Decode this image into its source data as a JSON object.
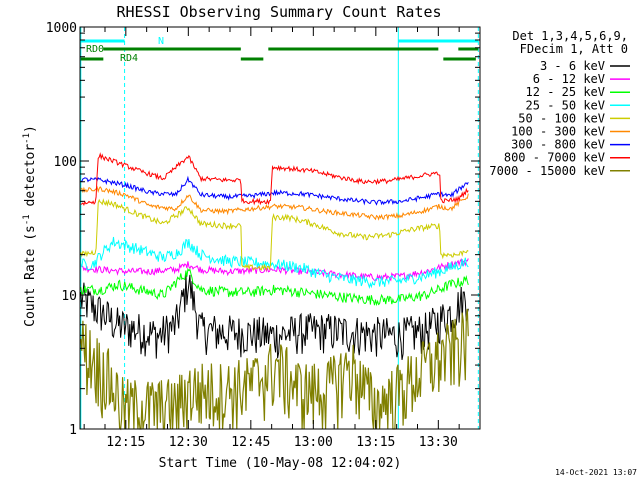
{
  "chart_data": {
    "type": "line",
    "title": "RHESSI Observing Summary Count Rates",
    "xlabel": "Start Time (10-May-08 12:04:02)",
    "ylabel_parts": [
      "Count Rate (s",
      "-1",
      " detector",
      "-1",
      ")"
    ],
    "yscale": "log",
    "ylim": [
      1,
      1000
    ],
    "xlim_minutes": [
      12.0667,
      13.6667
    ],
    "x_tick_labels": [
      "12:15",
      "12:30",
      "12:45",
      "13:00",
      "13:15",
      "13:30"
    ],
    "x_tick_values": [
      12.25,
      12.5,
      12.75,
      13.0,
      13.25,
      13.5
    ],
    "y_tick_labels": [
      "1",
      "10",
      "100",
      "1000"
    ],
    "y_tick_values": [
      1,
      10,
      100,
      1000
    ],
    "legend_header": [
      "Det 1,3,4,5,6,9,",
      "FDecim 1, Att 0"
    ],
    "legend_placement": "right",
    "footer": "14-Oct-2021 13:07",
    "series": [
      {
        "name": "3 - 6 keV",
        "color": "#000000",
        "points": [
          [
            12.07,
            9.5
          ],
          [
            12.15,
            7.5
          ],
          [
            12.22,
            6
          ],
          [
            12.3,
            5.5
          ],
          [
            12.38,
            5
          ],
          [
            12.45,
            6
          ],
          [
            12.5,
            13
          ],
          [
            12.55,
            5.5
          ],
          [
            12.65,
            5.3
          ],
          [
            12.75,
            5.2
          ],
          [
            12.85,
            5
          ],
          [
            12.95,
            5.4
          ],
          [
            13.05,
            5.5
          ],
          [
            13.15,
            5.3
          ],
          [
            13.25,
            5.1
          ],
          [
            13.35,
            5
          ],
          [
            13.45,
            5.5
          ],
          [
            13.55,
            7.5
          ],
          [
            13.62,
            10
          ]
        ]
      },
      {
        "name": "6 - 12 keV",
        "color": "#ff00ff",
        "points": [
          [
            12.07,
            16
          ],
          [
            12.15,
            15.5
          ],
          [
            12.25,
            15
          ],
          [
            12.35,
            15
          ],
          [
            12.45,
            15.5
          ],
          [
            12.5,
            17
          ],
          [
            12.55,
            15.5
          ],
          [
            12.65,
            15
          ],
          [
            12.75,
            15.2
          ],
          [
            12.85,
            15.5
          ],
          [
            12.95,
            15
          ],
          [
            13.05,
            14.5
          ],
          [
            13.15,
            14
          ],
          [
            13.25,
            13.5
          ],
          [
            13.35,
            13.8
          ],
          [
            13.45,
            15
          ],
          [
            13.55,
            17
          ],
          [
            13.62,
            18
          ]
        ]
      },
      {
        "name": "12 - 25 keV",
        "color": "#00ff00",
        "points": [
          [
            12.07,
            11
          ],
          [
            12.15,
            11
          ],
          [
            12.22,
            12
          ],
          [
            12.3,
            11
          ],
          [
            12.4,
            10
          ],
          [
            12.46,
            13
          ],
          [
            12.5,
            15
          ],
          [
            12.55,
            11
          ],
          [
            12.65,
            10.5
          ],
          [
            12.75,
            10.5
          ],
          [
            12.85,
            11
          ],
          [
            12.95,
            10.5
          ],
          [
            13.05,
            10
          ],
          [
            13.15,
            9.5
          ],
          [
            13.25,
            9.2
          ],
          [
            13.35,
            9.3
          ],
          [
            13.45,
            10
          ],
          [
            13.55,
            12
          ],
          [
            13.62,
            13
          ]
        ]
      },
      {
        "name": "25 - 50 keV",
        "color": "#00ffff",
        "points": [
          [
            12.07,
            17
          ],
          [
            12.12,
            17
          ],
          [
            12.16,
            21
          ],
          [
            12.2,
            25
          ],
          [
            12.3,
            22
          ],
          [
            12.4,
            19
          ],
          [
            12.46,
            21
          ],
          [
            12.5,
            25
          ],
          [
            12.55,
            20
          ],
          [
            12.65,
            18
          ],
          [
            12.75,
            17.5
          ],
          [
            12.85,
            17
          ],
          [
            12.95,
            16
          ],
          [
            13.05,
            14
          ],
          [
            13.15,
            13
          ],
          [
            13.25,
            12.5
          ],
          [
            13.35,
            12.8
          ],
          [
            13.45,
            14
          ],
          [
            13.55,
            16
          ],
          [
            13.62,
            18
          ]
        ]
      },
      {
        "name": "50 - 100 keV",
        "color": "#cccc00",
        "points": [
          [
            12.07,
            20
          ],
          [
            12.13,
            21
          ],
          [
            12.14,
            50
          ],
          [
            12.2,
            48
          ],
          [
            12.3,
            40
          ],
          [
            12.4,
            34
          ],
          [
            12.5,
            45
          ],
          [
            12.55,
            34
          ],
          [
            12.65,
            33
          ],
          [
            12.71,
            33
          ],
          [
            12.715,
            16
          ],
          [
            12.78,
            16
          ],
          [
            12.83,
            16
          ],
          [
            12.835,
            38
          ],
          [
            12.9,
            38
          ],
          [
            13.0,
            34
          ],
          [
            13.1,
            29
          ],
          [
            13.2,
            27
          ],
          [
            13.3,
            28
          ],
          [
            13.4,
            31
          ],
          [
            13.505,
            33
          ],
          [
            13.51,
            20
          ],
          [
            13.58,
            20
          ],
          [
            13.62,
            22
          ]
        ]
      },
      {
        "name": "100 - 300 keV",
        "color": "#ff8800",
        "points": [
          [
            12.07,
            60
          ],
          [
            12.15,
            62
          ],
          [
            12.25,
            56
          ],
          [
            12.35,
            46
          ],
          [
            12.45,
            44
          ],
          [
            12.5,
            56
          ],
          [
            12.55,
            43
          ],
          [
            12.65,
            42
          ],
          [
            12.75,
            44
          ],
          [
            12.85,
            46
          ],
          [
            12.95,
            45
          ],
          [
            13.05,
            42
          ],
          [
            13.15,
            40
          ],
          [
            13.25,
            38
          ],
          [
            13.35,
            39
          ],
          [
            13.45,
            43
          ],
          [
            13.5,
            46
          ],
          [
            13.55,
            44
          ],
          [
            13.62,
            55
          ]
        ]
      },
      {
        "name": "300 - 800 keV",
        "color": "#0000ff",
        "points": [
          [
            12.07,
            73
          ],
          [
            12.15,
            72
          ],
          [
            12.25,
            66
          ],
          [
            12.35,
            58
          ],
          [
            12.45,
            56
          ],
          [
            12.5,
            73
          ],
          [
            12.55,
            56
          ],
          [
            12.65,
            54
          ],
          [
            12.75,
            55
          ],
          [
            12.85,
            58
          ],
          [
            12.95,
            57
          ],
          [
            13.05,
            54
          ],
          [
            13.15,
            51
          ],
          [
            13.25,
            49
          ],
          [
            13.35,
            50
          ],
          [
            13.45,
            54
          ],
          [
            13.5,
            57
          ],
          [
            13.55,
            55
          ],
          [
            13.62,
            70
          ]
        ]
      },
      {
        "name": "800 - 7000 keV",
        "color": "#ff0000",
        "points": [
          [
            12.07,
            48
          ],
          [
            12.13,
            50
          ],
          [
            12.14,
            110
          ],
          [
            12.2,
            100
          ],
          [
            12.3,
            85
          ],
          [
            12.4,
            74
          ],
          [
            12.5,
            108
          ],
          [
            12.55,
            74
          ],
          [
            12.65,
            72
          ],
          [
            12.71,
            72
          ],
          [
            12.715,
            50
          ],
          [
            12.78,
            50
          ],
          [
            12.83,
            50
          ],
          [
            12.835,
            90
          ],
          [
            12.9,
            88
          ],
          [
            13.0,
            84
          ],
          [
            13.1,
            76
          ],
          [
            13.2,
            70
          ],
          [
            13.3,
            71
          ],
          [
            13.4,
            76
          ],
          [
            13.505,
            82
          ],
          [
            13.51,
            50
          ],
          [
            13.58,
            52
          ],
          [
            13.62,
            62
          ]
        ]
      },
      {
        "name": "7000 - 15000 keV",
        "color": "#808000",
        "points": [
          [
            12.07,
            4.5
          ],
          [
            12.12,
            3.5
          ],
          [
            12.18,
            2.5
          ],
          [
            12.24,
            1.5
          ],
          [
            12.3,
            1.5
          ],
          [
            12.38,
            1.5
          ],
          [
            12.45,
            1.5
          ],
          [
            12.5,
            2
          ],
          [
            12.55,
            2
          ],
          [
            12.65,
            2
          ],
          [
            12.75,
            2.2
          ],
          [
            12.85,
            3
          ],
          [
            12.9,
            2.5
          ],
          [
            12.95,
            2
          ],
          [
            13.05,
            2
          ],
          [
            13.15,
            3
          ],
          [
            13.25,
            1.5
          ],
          [
            13.35,
            2
          ],
          [
            13.45,
            3
          ],
          [
            13.55,
            4
          ],
          [
            13.62,
            5
          ]
        ]
      }
    ],
    "annotations": {
      "flag_labels": [
        "N",
        "RD0",
        "RD4"
      ],
      "flag_bars": [
        {
          "label": "N",
          "color": "#00ffff",
          "segments": [
            [
              12.07,
              12.245
            ],
            [
              13.34,
              13.66
            ]
          ]
        },
        {
          "label": "RD0",
          "color": "#008000",
          "segments": [
            [
              12.16,
              12.71
            ],
            [
              12.82,
              13.5
            ],
            [
              13.58,
              13.66
            ]
          ]
        },
        {
          "label": "RD4",
          "color": "#008000",
          "segments": [
            [
              12.07,
              12.16
            ],
            [
              12.71,
              12.8
            ],
            [
              13.52,
              13.65
            ]
          ]
        }
      ],
      "vertical_lines_solid": [
        12.07,
        13.34
      ],
      "vertical_lines_dashed": [
        12.245,
        13.66
      ],
      "line_color": "#00ffff"
    }
  }
}
